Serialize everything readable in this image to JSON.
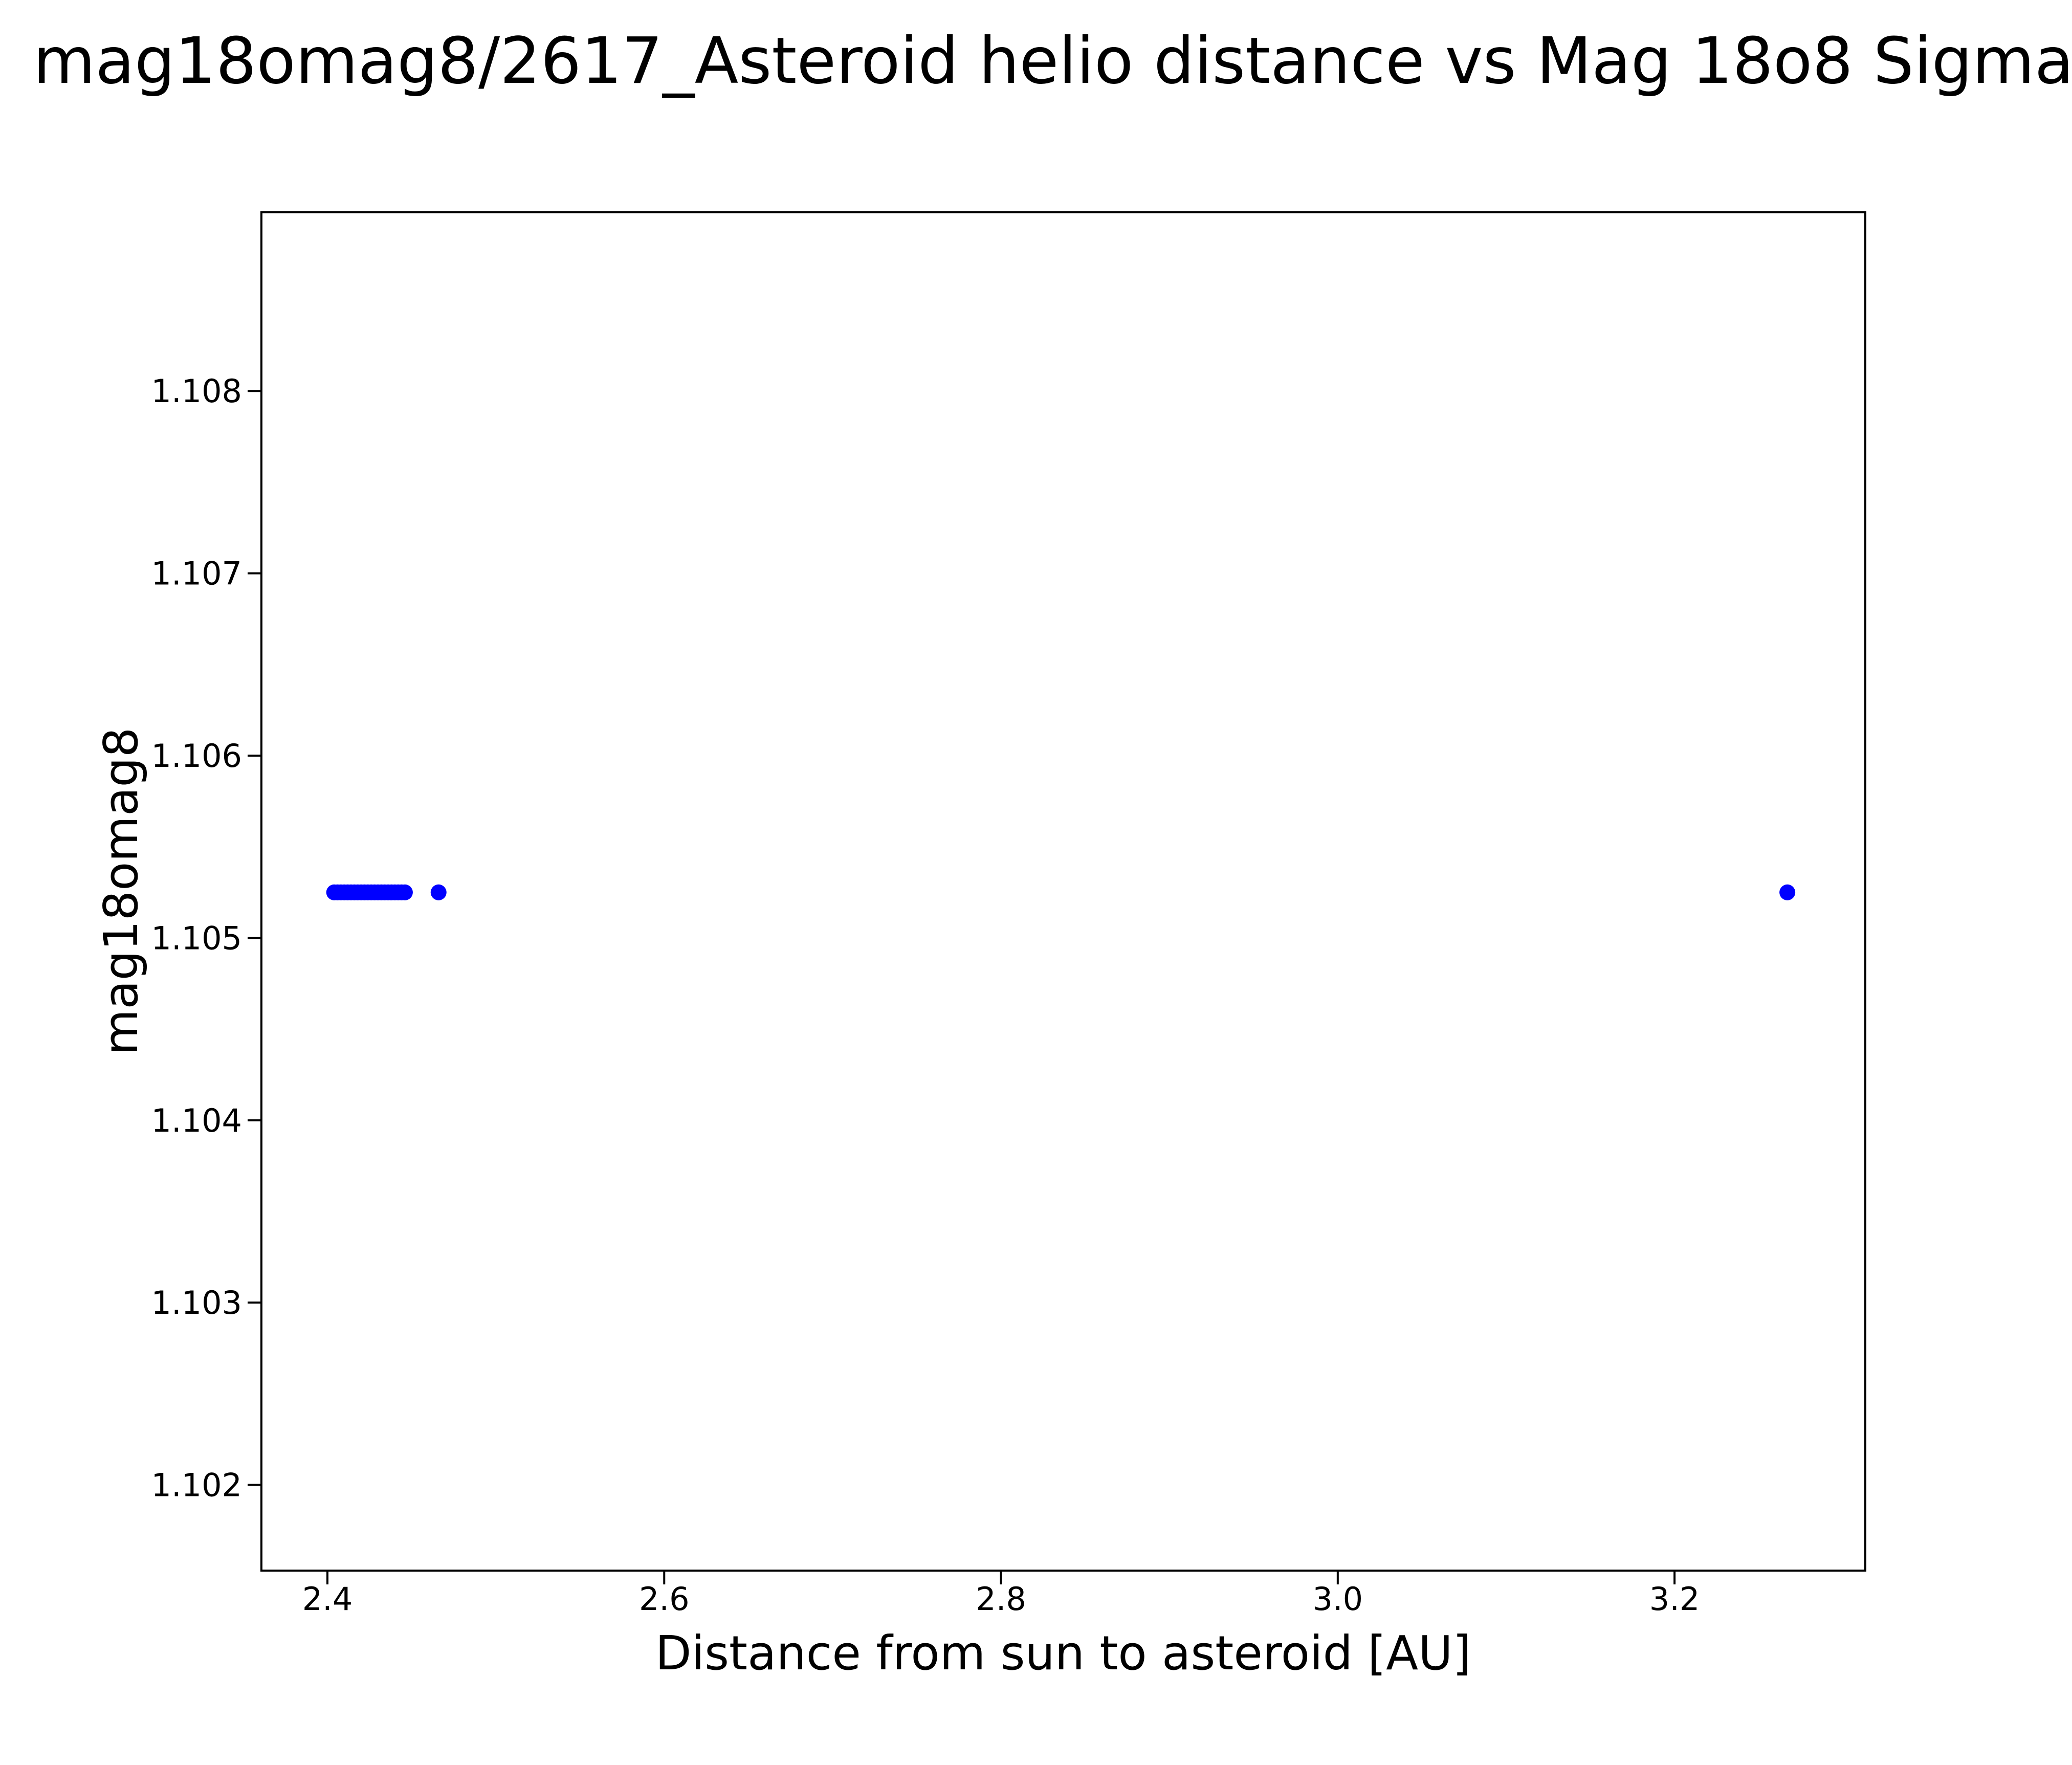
{
  "figure": {
    "background": "#ffffff"
  },
  "chart_data": {
    "type": "scatter",
    "title": "mag18omag8/2617_Asteroid helio distance vs Mag 18o8 Sigma",
    "xlabel": "Distance from sun to asteroid [AU]",
    "ylabel": "mag18omag8",
    "grid": false,
    "legend": "none",
    "marker": {
      "color": "#0000ff",
      "radius_px": 15.5
    },
    "axis_color": "#000000",
    "xlim": [
      2.3608,
      3.3133
    ],
    "ylim": [
      1.10153,
      1.10898
    ],
    "x_ticks": [
      2.4,
      2.6,
      2.8,
      3.0,
      3.2
    ],
    "x_tick_labels": [
      "2.4",
      "2.6",
      "2.8",
      "3.0",
      "3.2"
    ],
    "y_ticks": [
      1.102,
      1.103,
      1.104,
      1.105,
      1.106,
      1.107,
      1.108
    ],
    "y_tick_labels": [
      "1.102",
      "1.103",
      "1.104",
      "1.105",
      "1.106",
      "1.107",
      "1.108"
    ],
    "series": [
      {
        "name": "asteroid-observations",
        "x": [
          2.404,
          2.406,
          2.408,
          2.41,
          2.412,
          2.414,
          2.416,
          2.418,
          2.42,
          2.422,
          2.424,
          2.426,
          2.428,
          2.43,
          2.432,
          2.434,
          2.436,
          2.438,
          2.44,
          2.442,
          2.444,
          2.446,
          2.466,
          3.267
        ],
        "y": [
          1.10525,
          1.10525,
          1.10525,
          1.10525,
          1.10525,
          1.10525,
          1.10525,
          1.10525,
          1.10525,
          1.10525,
          1.10525,
          1.10525,
          1.10525,
          1.10525,
          1.10525,
          1.10525,
          1.10525,
          1.10525,
          1.10525,
          1.10525,
          1.10525,
          1.10525,
          1.10525,
          1.10525
        ]
      }
    ]
  }
}
